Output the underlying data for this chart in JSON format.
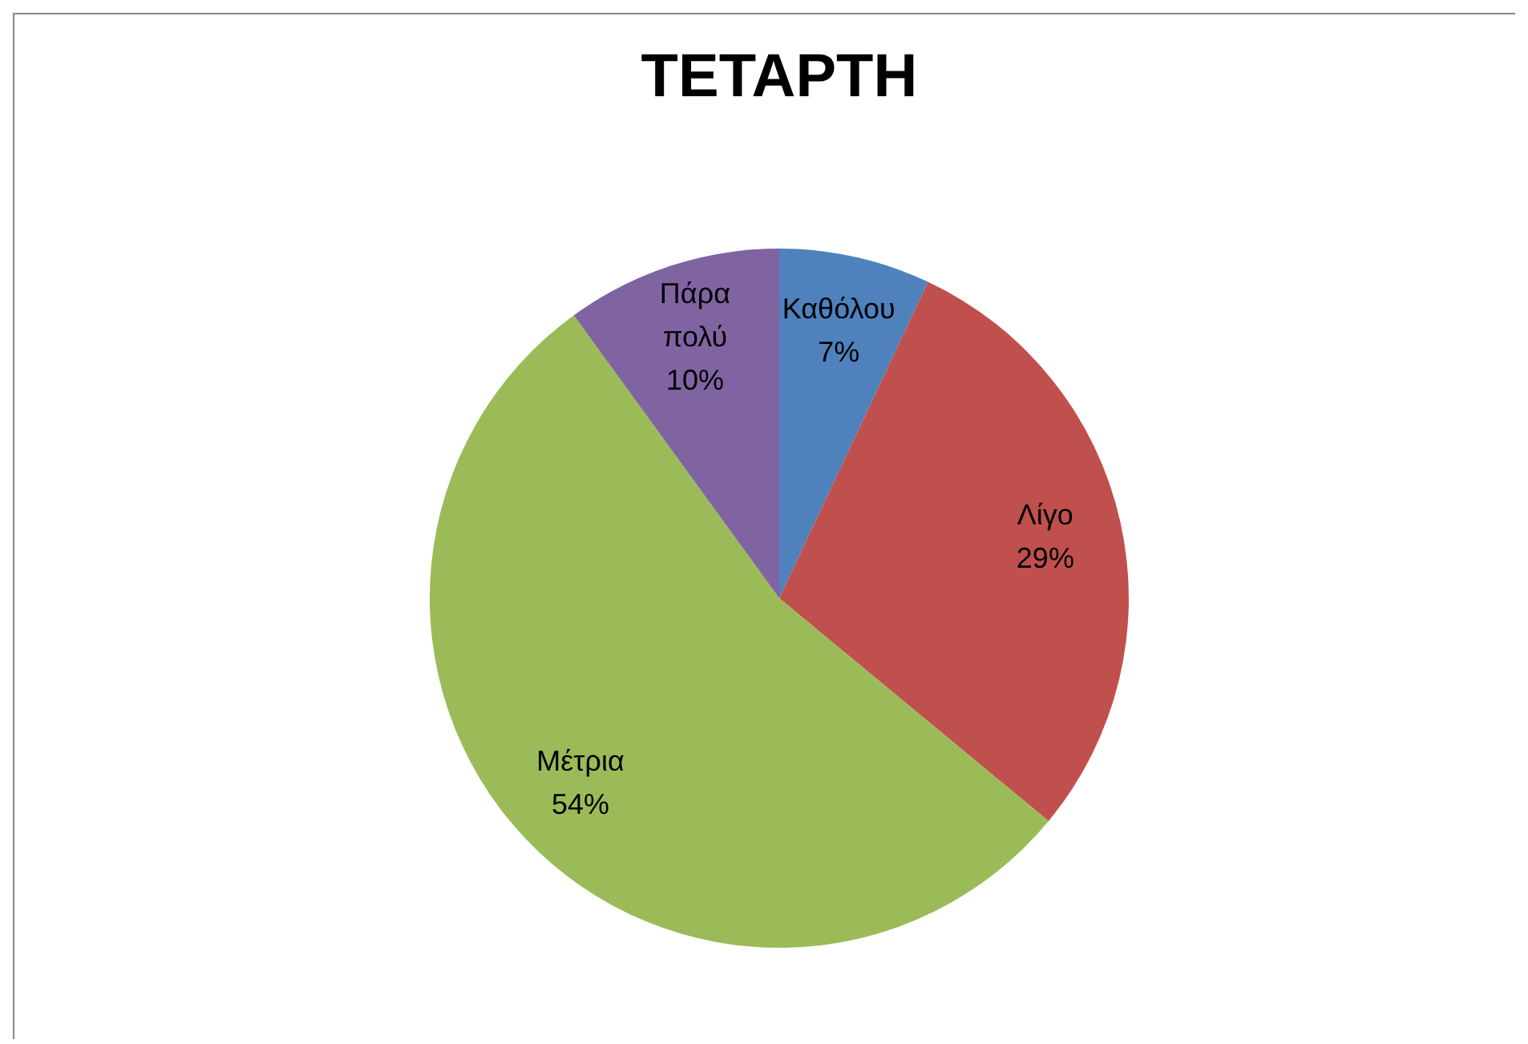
{
  "chart_data": {
    "type": "pie",
    "title": "ΤΕΤΑΡΤΗ",
    "categories": [
      "Καθόλου",
      "Λίγο",
      "Μέτρια",
      "Πάρα πολύ"
    ],
    "values": [
      7,
      29,
      54,
      10
    ],
    "colors": [
      "#4f81bd",
      "#c0504d",
      "#9bbb59",
      "#8064a2"
    ],
    "value_labels": [
      "7%",
      "29%",
      "54%",
      "10%"
    ]
  }
}
